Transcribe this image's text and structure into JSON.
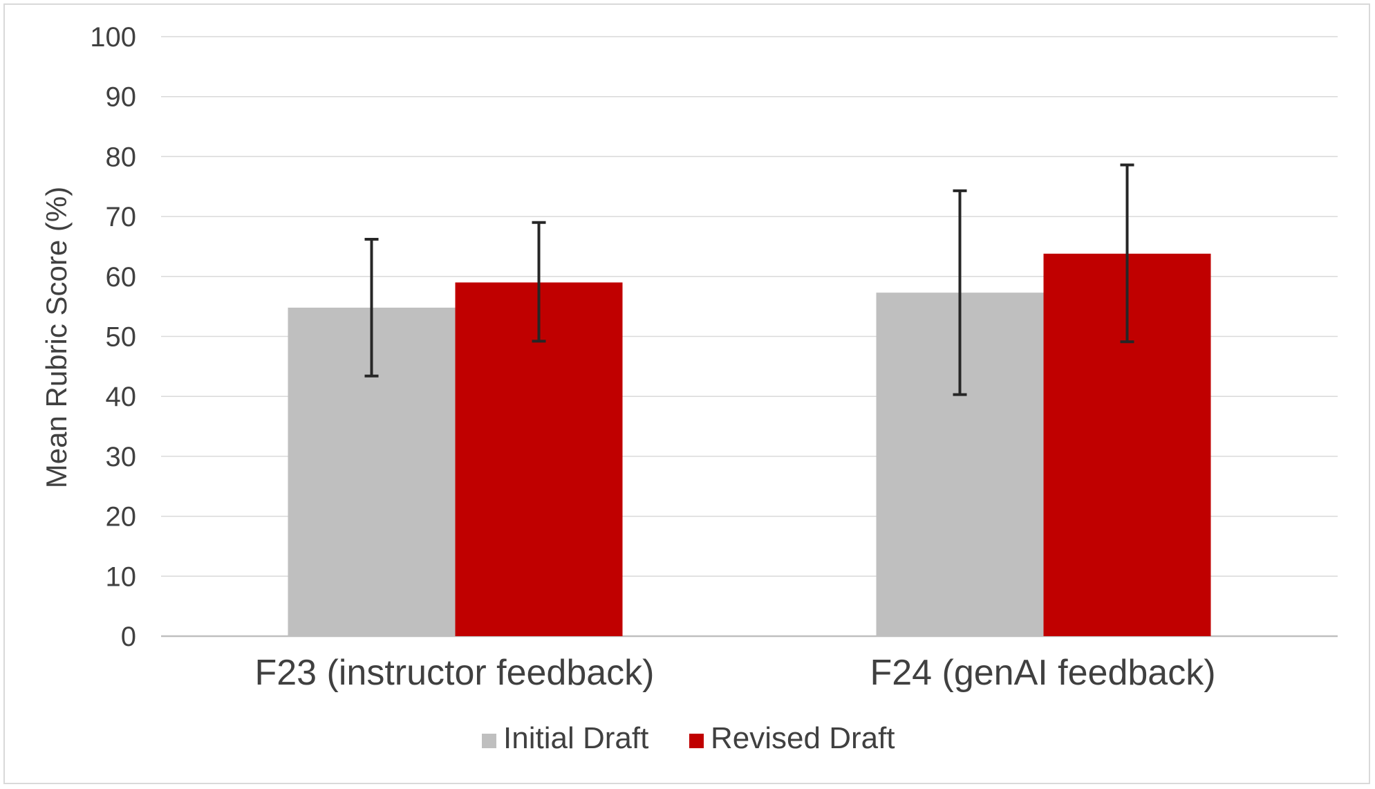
{
  "chart_data": {
    "type": "bar",
    "title": "",
    "xlabel": "",
    "ylabel": "Mean Rubric Score (%)",
    "ylim": [
      0,
      100
    ],
    "yticks": [
      0,
      10,
      20,
      30,
      40,
      50,
      60,
      70,
      80,
      90,
      100
    ],
    "grid": true,
    "legend_position": "bottom",
    "categories": [
      "F23 (instructor feedback)",
      "F24 (genAI feedback)"
    ],
    "series": [
      {
        "name": "Initial Draft",
        "color": "#bfbfbf",
        "values": [
          54.8,
          57.3
        ],
        "error_low": [
          43.4,
          40.3
        ],
        "error_high": [
          66.2,
          74.3
        ]
      },
      {
        "name": "Revised Draft",
        "color": "#c00000",
        "values": [
          59.0,
          63.8
        ],
        "error_low": [
          49.2,
          49.1
        ],
        "error_high": [
          69.0,
          78.6
        ]
      }
    ]
  }
}
